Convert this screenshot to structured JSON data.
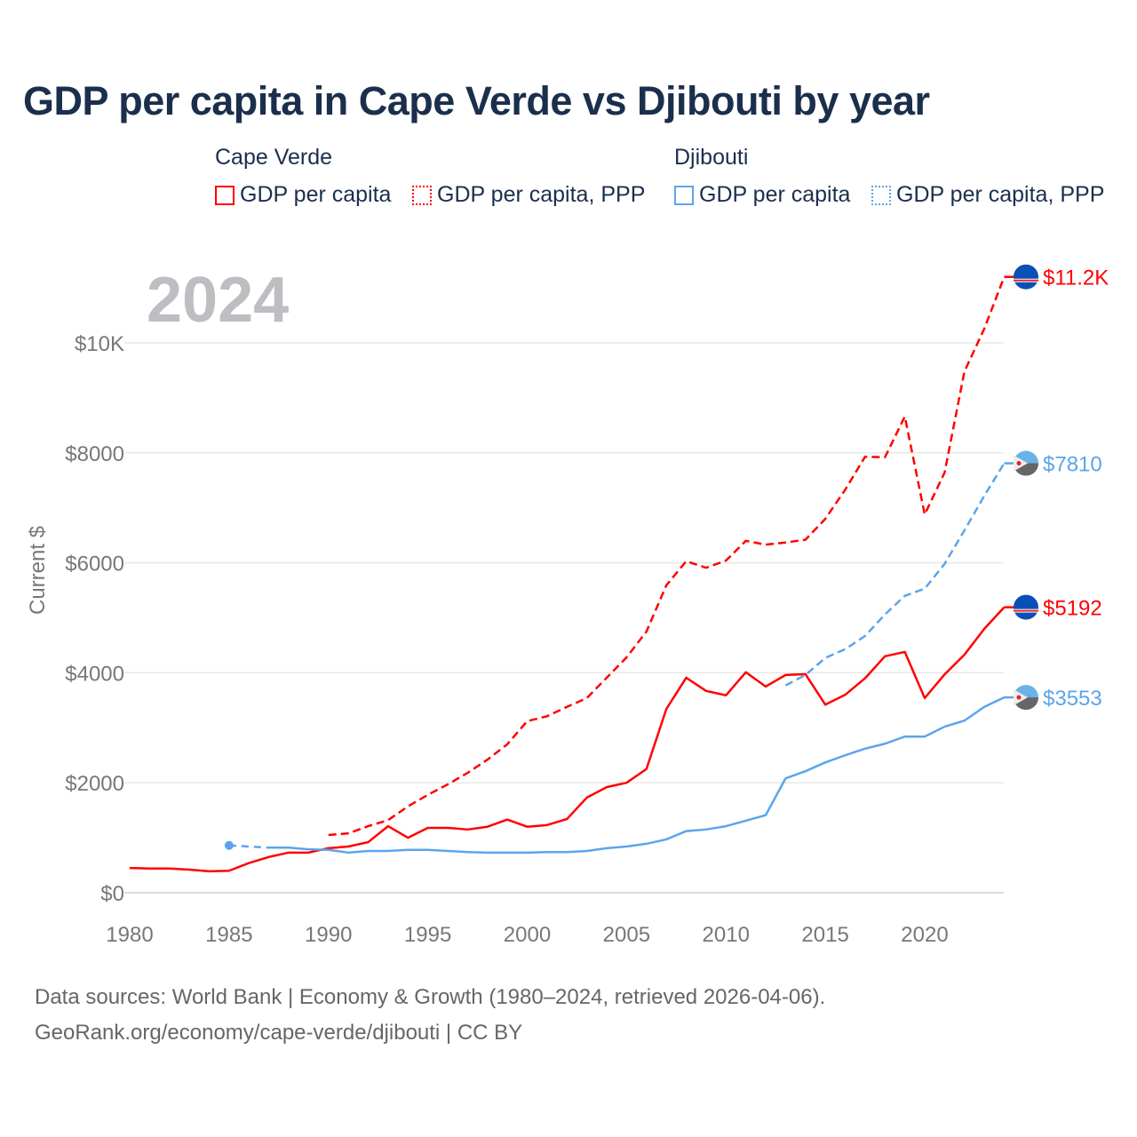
{
  "title": "GDP per capita in Cape Verde vs Djibouti by year",
  "legend": {
    "groups": [
      {
        "country": "Cape Verde",
        "items": [
          "GDP per capita",
          "GDP per capita, PPP"
        ],
        "color": "#ff0000"
      },
      {
        "country": "Djibouti",
        "items": [
          "GDP per capita",
          "GDP per capita, PPP"
        ],
        "color": "#5aa5ec"
      }
    ]
  },
  "year_label": "2024",
  "footer": {
    "line1": "Data sources: World Bank | Economy & Growth (1980–2024, retrieved 2026-04-06).",
    "line2": "GeoRank.org/economy/cape-verde/djibouti | CC BY"
  },
  "chart_data": {
    "type": "line",
    "title": "GDP per capita in Cape Verde vs Djibouti by year",
    "xlabel": "",
    "ylabel": "Current $",
    "xlim": [
      1980,
      2024
    ],
    "ylim": [
      0,
      11200
    ],
    "x_ticks": [
      1980,
      1985,
      1990,
      1995,
      2000,
      2005,
      2010,
      2015,
      2020
    ],
    "y_ticks": [
      {
        "v": 0,
        "label": "$0"
      },
      {
        "v": 2000,
        "label": "$2000"
      },
      {
        "v": 4000,
        "label": "$4000"
      },
      {
        "v": 6000,
        "label": "$6000"
      },
      {
        "v": 8000,
        "label": "$8000"
      },
      {
        "v": 10000,
        "label": "$10K"
      }
    ],
    "grid": true,
    "series": [
      {
        "name": "Cape Verde GDP per capita",
        "color": "#ff0000",
        "dash": false,
        "end_label": "$5192",
        "start": 1980,
        "values": [
          450,
          440,
          440,
          420,
          390,
          400,
          540,
          650,
          730,
          730,
          810,
          840,
          920,
          1210,
          1000,
          1180,
          1180,
          1150,
          1200,
          1330,
          1200,
          1230,
          1340,
          1730,
          1920,
          2000,
          2250,
          3340,
          3910,
          3670,
          3590,
          4010,
          3750,
          3960,
          3975,
          3420,
          3600,
          3900,
          4300,
          4380,
          3540,
          3970,
          4330,
          4800,
          5192
        ]
      },
      {
        "name": "Cape Verde GDP per capita, PPP",
        "color": "#ff0000",
        "dash": true,
        "end_label": "$11.2K",
        "start": 1990,
        "values": [
          1050,
          1080,
          1210,
          1320,
          1570,
          1780,
          1970,
          2180,
          2420,
          2700,
          3120,
          3210,
          3380,
          3540,
          3910,
          4280,
          4750,
          5590,
          6030,
          5910,
          6040,
          6400,
          6330,
          6370,
          6420,
          6800,
          7330,
          7930,
          7920,
          8660,
          6880,
          7640,
          9480,
          10260,
          11200
        ]
      },
      {
        "name": "Djibouti GDP per capita",
        "color": "#5aa5ec",
        "dash": false,
        "end_label": "$3553",
        "start": 1985,
        "values": [
          860,
          null,
          820,
          820,
          790,
          780,
          730,
          760,
          760,
          780,
          780,
          760,
          740,
          730,
          730,
          730,
          740,
          740,
          760,
          810,
          840,
          890,
          970,
          1120,
          1150,
          1210,
          1310,
          1410,
          2080,
          2210,
          2370,
          2500,
          2620,
          2710,
          2840,
          2840,
          3020,
          3130,
          3380,
          3553
        ]
      },
      {
        "name": "Djibouti GDP per capita, PPP",
        "color": "#5aa5ec",
        "dash": true,
        "end_label": "$7810",
        "start": 2013,
        "values": [
          3770,
          3960,
          4270,
          4430,
          4670,
          5060,
          5400,
          5530,
          5980,
          6590,
          7220,
          7810
        ]
      }
    ]
  }
}
